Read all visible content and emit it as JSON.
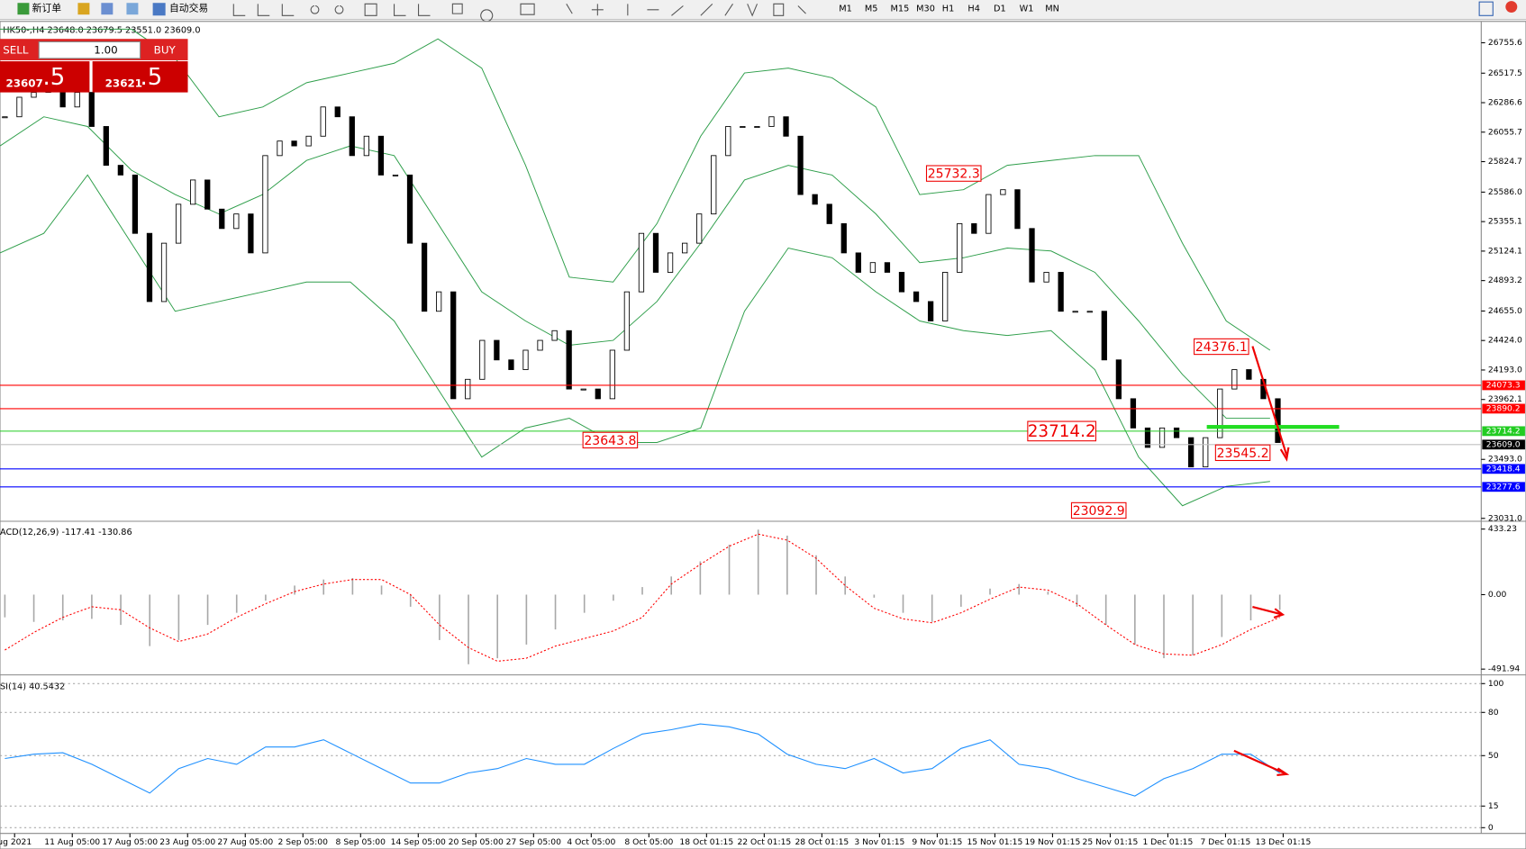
{
  "toolbar": {
    "new_order": "新订单",
    "auto_trading": "自动交易",
    "timeframes": [
      "M1",
      "M5",
      "M15",
      "M30",
      "H1",
      "H4",
      "D1",
      "W1",
      "MN"
    ]
  },
  "trade_panel": {
    "sell": "SELL",
    "buy": "BUY",
    "lot": "1.00",
    "sell_price_main": "23607",
    "sell_price_frac": ".5",
    "buy_price_main": "23621",
    "buy_price_frac": ".5"
  },
  "chart_data": [
    {
      "type": "candlestick",
      "title": "HK50-,H4 23648.0 23679.5 23551.0 23609.0",
      "closes": [
        26176,
        26329,
        26367,
        26405,
        26253,
        26367,
        26100,
        25796,
        25720,
        25263,
        24729,
        25186,
        25491,
        25681,
        25453,
        25301,
        25415,
        25110,
        25872,
        25986,
        25948,
        26024,
        26253,
        26176,
        25872,
        26024,
        25720,
        25720,
        25186,
        24653,
        24805,
        23968,
        24120,
        24425,
        24272,
        24196,
        24348,
        24425,
        24501,
        24044,
        24044,
        23968,
        24348,
        24805,
        25263,
        24958,
        25110,
        25186,
        25415,
        25872,
        26100,
        26100,
        26100,
        26176,
        26024,
        25567,
        25491,
        25339,
        25110,
        24958,
        25034,
        24958,
        24805,
        24729,
        24577,
        24958,
        25339,
        25263,
        25567,
        25605,
        25301,
        24882,
        24958,
        24653,
        24653,
        24653,
        24272,
        23968,
        23739,
        23587,
        23739,
        23663,
        23434,
        23663,
        24044,
        24196,
        24120,
        23968,
        23625
      ],
      "series": [
        {
          "name": "upper",
          "color": "#2e9e4a",
          "values": [
            26862,
            26862,
            26862,
            26862,
            26634,
            26176,
            26253,
            26443,
            26519,
            26595,
            26786,
            26557,
            25796,
            24920,
            24882,
            25339,
            26024,
            26519,
            26557,
            26481,
            26253,
            25567,
            25605,
            25796,
            25834,
            25872,
            25872,
            25186,
            24577,
            24348
          ]
        },
        {
          "name": "middle",
          "color": "#2e9e4a",
          "values": [
            25948,
            26176,
            26100,
            25758,
            25567,
            25415,
            25567,
            25834,
            25948,
            25872,
            25339,
            24805,
            24577,
            24387,
            24425,
            24729,
            25186,
            25681,
            25796,
            25720,
            25415,
            25034,
            25072,
            25148,
            25125,
            24958,
            24577,
            24158,
            23815,
            23815
          ]
        },
        {
          "name": "lower",
          "color": "#2e9e4a",
          "values": [
            25110,
            25263,
            25720,
            25186,
            24653,
            24729,
            24805,
            24882,
            24882,
            24577,
            24044,
            23511,
            23739,
            23815,
            23625,
            23625,
            23739,
            24653,
            25148,
            25072,
            24805,
            24577,
            24501,
            24463,
            24501,
            24196,
            23511,
            23130,
            23282,
            23320
          ]
        }
      ],
      "ylim": [
        23016,
        26923
      ],
      "yticks": [
        26755.6,
        26517.5,
        26286.6,
        26055.7,
        25824.7,
        {
          "value": 25586,
          "label": "25586.0"
        },
        25355.1,
        25124.1,
        24893.2,
        {
          "value": 24655,
          "label": "24655.0"
        },
        {
          "value": 24424,
          "label": "24424.0"
        },
        {
          "value": 24193,
          "label": "24193.0"
        },
        23962.1,
        {
          "value": 23493,
          "label": "23493.0"
        },
        {
          "value": 23031,
          "label": "23031.0"
        }
      ],
      "levels": [
        {
          "value": 24073.3,
          "color": "#ff0000"
        },
        {
          "value": 23890.2,
          "color": "#ff0000"
        },
        {
          "value": 23714.2,
          "color": "#22cc22"
        },
        {
          "value": 23609,
          "label": "23609.0",
          "color": "#c0c0c0",
          "label_color": "#000000"
        },
        {
          "value": 23418.4,
          "color": "#0000ff"
        },
        {
          "value": 23277.6,
          "color": "#0000ff"
        }
      ],
      "annotations": [
        {
          "value": 25732.3
        },
        {
          "value": 24376.1
        },
        {
          "value": 23714.2
        },
        {
          "value": 23545.2
        },
        {
          "value": 23643.8
        },
        {
          "value": 23092.9
        }
      ],
      "x_labels": [
        "ug 2021",
        "11 Aug 05:00",
        "17 Aug 05:00",
        "23 Aug 05:00",
        "27 Aug 05:00",
        "2 Sep 05:00",
        "8 Sep 05:00",
        "14 Sep 05:00",
        "20 Sep 05:00",
        "27 Sep 05:00",
        "4 Oct 05:00",
        "8 Oct 05:00",
        "18 Oct 01:15",
        "22 Oct 01:15",
        "28 Oct 01:15",
        "3 Nov 01:15",
        "9 Nov 01:15",
        "15 Nov 01:15",
        "19 Nov 01:15",
        "25 Nov 01:15",
        "1 Dec 01:15",
        "7 Dec 01:15",
        "13 Dec 01:15"
      ]
    },
    {
      "type": "macd",
      "title": "ACD(12,26,9) -117.41 -130.86",
      "series": [
        {
          "name": "histogram",
          "color": "#a8a8a8",
          "values": [
            -150,
            -180,
            -170,
            -160,
            -200,
            -340,
            -300,
            -200,
            -120,
            -40,
            60,
            100,
            110,
            60,
            -80,
            -300,
            -460,
            -420,
            -330,
            -230,
            -120,
            -40,
            50,
            120,
            220,
            330,
            430,
            390,
            260,
            120,
            -20,
            -120,
            -180,
            -80,
            40,
            70,
            20,
            -80,
            -200,
            -330,
            -420,
            -400,
            -280,
            -170,
            -100
          ]
        },
        {
          "name": "signal",
          "color": "#ff0000",
          "values": [
            -366,
            -250,
            -150,
            -80,
            -100,
            -220,
            -310,
            -260,
            -150,
            -60,
            20,
            70,
            100,
            100,
            0,
            -200,
            -350,
            -440,
            -420,
            -340,
            -290,
            -240,
            -150,
            70,
            200,
            320,
            400,
            360,
            240,
            60,
            -90,
            -160,
            -186,
            -120,
            -30,
            50,
            30,
            -60,
            -200,
            -330,
            -392,
            -400,
            -330,
            -230,
            -150
          ]
        }
      ],
      "ylim": [
        -524,
        472
      ],
      "yticks": [
        433.23,
        {
          "value": 0,
          "label": "0.00"
        },
        -491.94
      ]
    },
    {
      "type": "rsi",
      "title": "SI(14) 40.5432",
      "series": [
        {
          "name": "rsi",
          "color": "#1e90ff",
          "values": [
            48,
            51,
            52,
            44,
            34,
            24,
            41,
            48,
            44,
            56,
            56,
            61,
            51,
            41,
            31,
            31,
            38,
            41,
            48,
            44,
            44,
            55,
            65,
            68,
            72,
            70,
            65,
            51,
            44,
            41,
            48,
            38,
            41,
            55,
            61,
            44,
            41,
            34,
            28,
            22,
            34,
            41,
            51,
            51,
            38
          ]
        }
      ],
      "ylim": [
        -4,
        104
      ],
      "yticks": [
        100,
        80,
        50,
        15,
        0
      ]
    }
  ]
}
